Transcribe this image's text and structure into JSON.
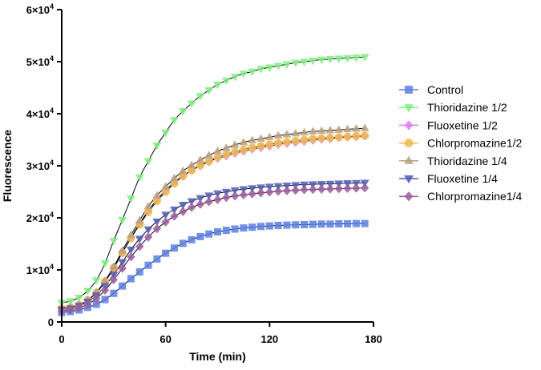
{
  "chart_data": {
    "type": "scatter",
    "xlabel": "Time (min)",
    "ylabel": "Fluorescence",
    "xlim": [
      0,
      180
    ],
    "ylim": [
      0,
      60000
    ],
    "xticks": [
      0,
      60,
      120,
      180
    ],
    "xtick_labels": [
      "0",
      "60",
      "120",
      "180"
    ],
    "yticks": [
      0,
      10000,
      20000,
      30000,
      40000,
      50000,
      60000
    ],
    "ytick_labels": [
      {
        "base": "0",
        "exp": ""
      },
      {
        "base": "1×10",
        "exp": "4"
      },
      {
        "base": "2×10",
        "exp": "4"
      },
      {
        "base": "3×10",
        "exp": "4"
      },
      {
        "base": "4×10",
        "exp": "4"
      },
      {
        "base": "5×10",
        "exp": "4"
      },
      {
        "base": "6×10",
        "exp": "4"
      }
    ],
    "grid": false,
    "legend_position": "right",
    "fit_curves": true,
    "x": [
      0,
      5,
      10,
      15,
      20,
      25,
      30,
      35,
      40,
      45,
      50,
      55,
      60,
      65,
      70,
      75,
      80,
      85,
      90,
      95,
      100,
      105,
      110,
      115,
      120,
      125,
      130,
      135,
      140,
      145,
      150,
      155,
      160,
      165,
      170,
      175
    ],
    "series": [
      {
        "name": "Control",
        "color": "#5b7fe8",
        "marker": "square",
        "values": [
          1800,
          2000,
          2300,
          2800,
          3400,
          4300,
          5500,
          6900,
          8300,
          9600,
          10900,
          12100,
          13200,
          14200,
          15100,
          15800,
          16400,
          16900,
          17300,
          17600,
          17850,
          18050,
          18200,
          18350,
          18450,
          18550,
          18600,
          18650,
          18700,
          18750,
          18800,
          18800,
          18850,
          18850,
          18900,
          18900
        ]
      },
      {
        "name": "Thioridazine 1/2",
        "color": "#7ef07e",
        "marker": "triangle-down",
        "values": [
          3700,
          4000,
          4700,
          6000,
          8000,
          11300,
          15600,
          19600,
          23700,
          27800,
          30900,
          33900,
          36400,
          38800,
          40500,
          42000,
          43400,
          44500,
          45600,
          46400,
          47100,
          47700,
          48100,
          48600,
          48900,
          49200,
          49500,
          49800,
          50000,
          50200,
          50400,
          50500,
          50600,
          50700,
          50800,
          50900
        ]
      },
      {
        "name": "Fluoxetine 1/2",
        "color": "#e27ef0",
        "marker": "diamond",
        "values": [
          2600,
          2800,
          3300,
          4200,
          5600,
          7700,
          10300,
          13300,
          16200,
          18900,
          21400,
          23500,
          25300,
          26800,
          28100,
          29100,
          30000,
          30800,
          31400,
          31900,
          32400,
          32800,
          33200,
          33500,
          33800,
          34100,
          34300,
          34500,
          34700,
          34900,
          35100,
          35200,
          35400,
          35500,
          35600,
          35700
        ]
      },
      {
        "name": "Chlorpromazine1/2",
        "color": "#f0b84a",
        "marker": "circle",
        "values": [
          2600,
          2800,
          3300,
          4200,
          5600,
          7800,
          10400,
          13300,
          16100,
          18700,
          21100,
          23200,
          25000,
          26600,
          28000,
          29100,
          30100,
          30900,
          31600,
          32200,
          32700,
          33100,
          33500,
          33800,
          34100,
          34400,
          34600,
          34800,
          35000,
          35200,
          35300,
          35400,
          35500,
          35600,
          35700,
          35800
        ]
      },
      {
        "name": "Thioridazine 1/4",
        "color": "#b8a07e",
        "marker": "triangle-up",
        "values": [
          2500,
          2800,
          3300,
          4200,
          5700,
          7900,
          10600,
          13700,
          16700,
          19500,
          22200,
          24300,
          26000,
          27600,
          29000,
          30100,
          31100,
          32000,
          32800,
          33400,
          34000,
          34500,
          34900,
          35200,
          35500,
          35800,
          36000,
          36200,
          36400,
          36600,
          36700,
          36800,
          36900,
          37000,
          37100,
          37200
        ]
      },
      {
        "name": "Fluoxetine 1/4",
        "color": "#4e5bb8",
        "marker": "triangle-down",
        "values": [
          2400,
          2600,
          3100,
          3900,
          5100,
          6900,
          9100,
          11500,
          13900,
          16000,
          17800,
          19300,
          20600,
          21600,
          22500,
          23200,
          23800,
          24300,
          24700,
          25000,
          25300,
          25500,
          25700,
          25850,
          26000,
          26100,
          26200,
          26300,
          26400,
          26450,
          26500,
          26550,
          26600,
          26650,
          26700,
          26750
        ]
      },
      {
        "name": "Chlorpromazine1/4",
        "color": "#9e5aa0",
        "marker": "diamond",
        "values": [
          2100,
          2300,
          2700,
          3400,
          4500,
          6100,
          8100,
          10300,
          12500,
          14500,
          16300,
          17900,
          19200,
          20300,
          21200,
          22000,
          22600,
          23100,
          23500,
          23900,
          24200,
          24400,
          24600,
          24800,
          24950,
          25100,
          25200,
          25300,
          25400,
          25450,
          25500,
          25550,
          25600,
          25650,
          25700,
          25750
        ]
      }
    ]
  }
}
